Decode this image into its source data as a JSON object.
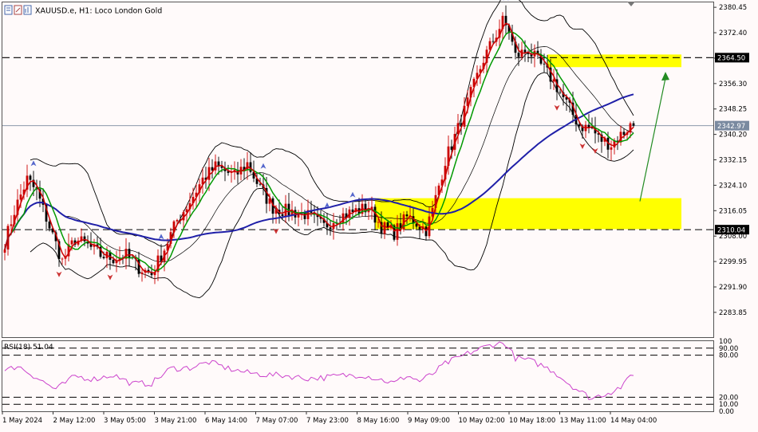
{
  "header": {
    "symbol_title": "XAUUSD.e, H1:  Loco London Gold"
  },
  "rsi_panel": {
    "label": "RSI(18) 51.04"
  },
  "price_tags": {
    "resistance": "2364.50",
    "current": "2342.97",
    "support": "2310.04"
  },
  "colors": {
    "background": "#fffafa",
    "bull_candle": "#cc0000",
    "bear_candle": "#000000",
    "ma_fast": "#cc0000",
    "ma_mid": "#009900",
    "ma_slow": "#1f1fa8",
    "bollinger": "#000000",
    "zone": "#ffff00",
    "rsi_line": "#cc44cc",
    "arrow_up": "#5566cc",
    "arrow_down": "#cc3333",
    "forecast_arrow": "#228b22"
  },
  "icons": [
    "chart-window-icon",
    "timeframe-icon",
    "bars-icon"
  ],
  "chart_data": {
    "type": "candlestick",
    "symbol": "XAUUSD.e",
    "timeframe": "H1",
    "price_axis": {
      "min": 2276,
      "max": 2382,
      "ticks": [
        "2380.45",
        "2372.40",
        "2364.35",
        "2356.30",
        "2348.25",
        "2340.20",
        "2332.15",
        "2324.10",
        "2316.05",
        "2308.00",
        "2299.95",
        "2291.90",
        "2283.85"
      ]
    },
    "time_labels": [
      "1 May 2024",
      "2 May 12:00",
      "3 May 05:00",
      "3 May 21:00",
      "6 May 14:00",
      "7 May 07:00",
      "7 May 23:00",
      "8 May 16:00",
      "9 May 09:00",
      "10 May 02:00",
      "10 May 18:00",
      "13 May 11:00",
      "14 May 04:00"
    ],
    "levels": [
      {
        "price": 2364.5,
        "style": "dashed"
      },
      {
        "price": 2342.97,
        "style": "solid"
      },
      {
        "price": 2310.04,
        "style": "dashed"
      }
    ],
    "zones": [
      {
        "from": 2361.5,
        "to": 2365.5,
        "start_bar": 170,
        "end_bar": 212
      },
      {
        "from": 2310.2,
        "to": 2320.0,
        "start_bar": 116,
        "end_bar": 212
      }
    ],
    "forecast_arrow": {
      "from_bar": 199,
      "from_price": 2319,
      "to_bar": 207,
      "to_price": 2360
    },
    "anchors": [
      [
        0,
        2306
      ],
      [
        3,
        2316
      ],
      [
        7,
        2326
      ],
      [
        10,
        2322
      ],
      [
        14,
        2311
      ],
      [
        18,
        2300
      ],
      [
        22,
        2307
      ],
      [
        26,
        2305
      ],
      [
        30,
        2302
      ],
      [
        34,
        2301
      ],
      [
        38,
        2302
      ],
      [
        42,
        2298
      ],
      [
        46,
        2296
      ],
      [
        50,
        2304
      ],
      [
        54,
        2313
      ],
      [
        58,
        2319
      ],
      [
        62,
        2326
      ],
      [
        66,
        2330
      ],
      [
        72,
        2327
      ],
      [
        76,
        2331
      ],
      [
        80,
        2323
      ],
      [
        84,
        2317
      ],
      [
        88,
        2316
      ],
      [
        94,
        2315
      ],
      [
        100,
        2311
      ],
      [
        104,
        2314
      ],
      [
        110,
        2316
      ],
      [
        114,
        2317
      ],
      [
        118,
        2311
      ],
      [
        122,
        2309
      ],
      [
        126,
        2314
      ],
      [
        128,
        2313
      ],
      [
        132,
        2310
      ],
      [
        134,
        2316
      ],
      [
        138,
        2332
      ],
      [
        142,
        2342
      ],
      [
        146,
        2353
      ],
      [
        150,
        2364
      ],
      [
        154,
        2372
      ],
      [
        156,
        2376
      ],
      [
        158,
        2373
      ],
      [
        160,
        2365
      ],
      [
        164,
        2367
      ],
      [
        168,
        2362
      ],
      [
        172,
        2357
      ],
      [
        176,
        2350
      ],
      [
        180,
        2343
      ],
      [
        184,
        2342
      ],
      [
        186,
        2339
      ],
      [
        190,
        2337
      ],
      [
        194,
        2341
      ],
      [
        196,
        2343
      ],
      [
        197,
        2342.97
      ]
    ],
    "rsi": {
      "period": 18,
      "current": 51.04,
      "levels": [
        90,
        80,
        20,
        10
      ],
      "axis_ticks": [
        "100",
        "90.00",
        "80.00",
        "20.00",
        "10.00",
        "0.00"
      ],
      "anchors": [
        [
          0,
          57
        ],
        [
          4,
          65
        ],
        [
          10,
          48
        ],
        [
          16,
          31
        ],
        [
          22,
          50
        ],
        [
          28,
          46
        ],
        [
          34,
          52
        ],
        [
          40,
          39
        ],
        [
          46,
          40
        ],
        [
          52,
          61
        ],
        [
          58,
          62
        ],
        [
          64,
          70
        ],
        [
          70,
          61
        ],
        [
          76,
          55
        ],
        [
          82,
          52
        ],
        [
          88,
          51
        ],
        [
          94,
          47
        ],
        [
          100,
          48
        ],
        [
          106,
          51
        ],
        [
          112,
          52
        ],
        [
          118,
          45
        ],
        [
          122,
          40
        ],
        [
          126,
          51
        ],
        [
          130,
          43
        ],
        [
          134,
          53
        ],
        [
          138,
          68
        ],
        [
          142,
          76
        ],
        [
          146,
          84
        ],
        [
          150,
          91
        ],
        [
          154,
          97
        ],
        [
          157,
          96
        ],
        [
          160,
          76
        ],
        [
          164,
          73
        ],
        [
          168,
          66
        ],
        [
          172,
          57
        ],
        [
          176,
          42
        ],
        [
          180,
          29
        ],
        [
          184,
          18
        ],
        [
          186,
          22
        ],
        [
          190,
          28
        ],
        [
          194,
          37
        ],
        [
          196,
          51
        ],
        [
          197,
          51
        ]
      ]
    }
  }
}
